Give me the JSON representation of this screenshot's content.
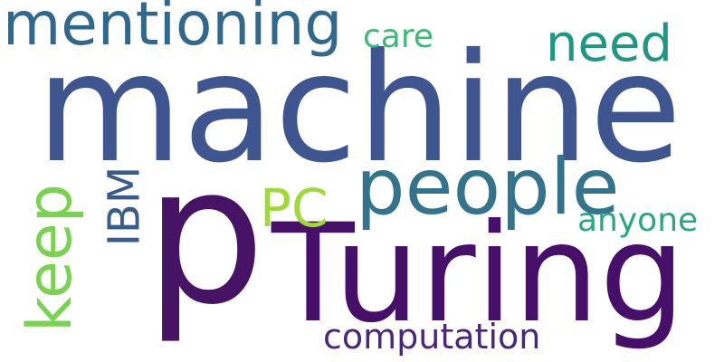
{
  "word_cloud": {
    "words": [
      {
        "text": "machine",
        "color": "#3e5590"
      },
      {
        "text": "p",
        "color": "#471365"
      },
      {
        "text": "Turing",
        "color": "#46106a"
      },
      {
        "text": "people",
        "color": "#33738c"
      },
      {
        "text": "mentioning",
        "color": "#31688e"
      },
      {
        "text": "need",
        "color": "#1f9785"
      },
      {
        "text": "care",
        "color": "#3dba74"
      },
      {
        "text": "keep",
        "color": "#79d250"
      },
      {
        "text": "IBM",
        "color": "#3b5b8d"
      },
      {
        "text": "PC",
        "color": "#a0da39"
      },
      {
        "text": "anyone",
        "color": "#27a882"
      },
      {
        "text": "computation",
        "color": "#482878"
      }
    ]
  }
}
